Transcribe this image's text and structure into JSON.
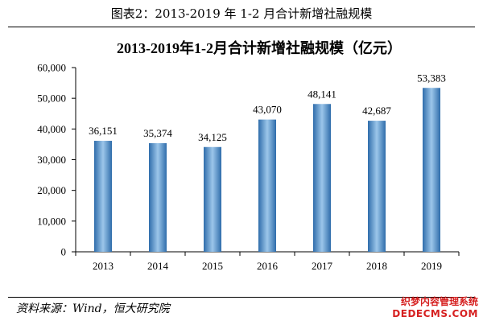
{
  "figure_title": "图表2：2013-2019 年 1-2 月合计新增社融规模",
  "source": "资料来源：Wind，恒大研究院",
  "watermark": {
    "line1": "织梦内容管理系统",
    "line2": "DEDECMS.COM"
  },
  "colors": {
    "bar_dark": "#2f6dab",
    "bar_light": "#9cc6ea",
    "axis": "#000000",
    "watermark": "#d62020"
  },
  "chart_data": {
    "type": "bar",
    "title": "2013-2019年1-2月合计新增社融规模（亿元）",
    "xlabel": "",
    "ylabel": "",
    "categories": [
      "2013",
      "2014",
      "2015",
      "2016",
      "2017",
      "2018",
      "2019"
    ],
    "values": [
      36151,
      35374,
      34125,
      43070,
      48141,
      42687,
      53383
    ],
    "value_labels": [
      "36,151",
      "35,374",
      "34,125",
      "43,070",
      "48,141",
      "42,687",
      "53,383"
    ],
    "ylim": [
      0,
      60000
    ],
    "yticks": [
      0,
      10000,
      20000,
      30000,
      40000,
      50000,
      60000
    ],
    "ytick_labels": [
      "0",
      "10,000",
      "20,000",
      "30,000",
      "40,000",
      "50,000",
      "60,000"
    ],
    "grid": false,
    "legend": "none"
  }
}
